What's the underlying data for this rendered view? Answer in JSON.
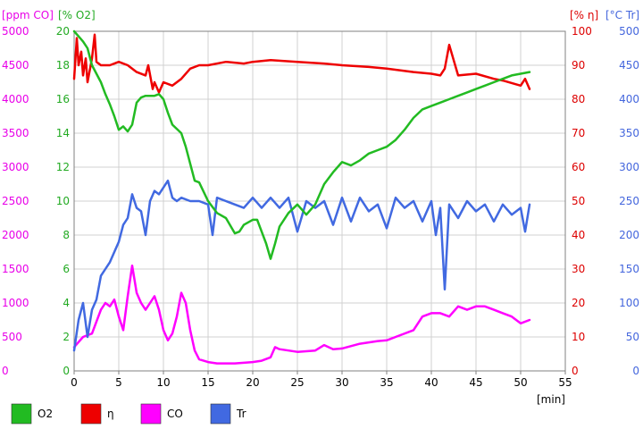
{
  "chart_data": {
    "type": "line",
    "x_unit_label": "[min]",
    "x_ticks": [
      0,
      5,
      10,
      15,
      20,
      25,
      30,
      35,
      40,
      45,
      50,
      55
    ],
    "xlim": [
      0,
      55
    ],
    "grid": true,
    "legend_position": "bottom",
    "axes": [
      {
        "id": "co",
        "side": "left",
        "label": "[ppm CO]",
        "range": [
          0,
          5000
        ],
        "ticks": [
          "0",
          "500",
          "1000",
          "1500",
          "2000",
          "2500",
          "3000",
          "3500",
          "4000",
          "4500",
          "5000"
        ],
        "color": "#e800e8"
      },
      {
        "id": "o2",
        "side": "left",
        "label": "[% O2]",
        "range": [
          0,
          20
        ],
        "ticks": [
          "0",
          "2",
          "4",
          "6",
          "8",
          "10",
          "12",
          "14",
          "16",
          "18",
          "20"
        ],
        "color": "#22aa22"
      },
      {
        "id": "eta",
        "side": "right",
        "label": "[% η]",
        "range": [
          0,
          100
        ],
        "ticks": [
          "0",
          "10",
          "20",
          "30",
          "40",
          "50",
          "60",
          "70",
          "80",
          "90",
          "100"
        ],
        "color": "#dd0000"
      },
      {
        "id": "tr",
        "side": "right",
        "label": "[°C Tr]",
        "range": [
          0,
          500
        ],
        "ticks": [
          "0",
          "50",
          "100",
          "150",
          "200",
          "250",
          "300",
          "350",
          "400",
          "450",
          "500"
        ],
        "color": "#4466dd"
      }
    ],
    "series": [
      {
        "name": "O2",
        "axis": "o2",
        "color": "#22bb22",
        "x": [
          0,
          0.5,
          1,
          1.5,
          2,
          3,
          3.5,
          4,
          4.5,
          5,
          5.5,
          6,
          6.5,
          7,
          7.5,
          8,
          9,
          9.5,
          10,
          10.5,
          11,
          12,
          12.5,
          13,
          13.5,
          14,
          15,
          16,
          17,
          18,
          18.5,
          19,
          20,
          20.5,
          21,
          21.5,
          22,
          22.5,
          23,
          24,
          25,
          26,
          27,
          28,
          29,
          30,
          31,
          32,
          33,
          34,
          35,
          36,
          37,
          38,
          39,
          40,
          41,
          42,
          43,
          44,
          45,
          46,
          47,
          48,
          49,
          50,
          51
        ],
        "y": [
          20,
          19.7,
          19.4,
          19,
          18,
          17,
          16.3,
          15.7,
          15,
          14.2,
          14.4,
          14.1,
          14.5,
          15.8,
          16.1,
          16.2,
          16.2,
          16.3,
          16,
          15.2,
          14.5,
          14,
          13.2,
          12.2,
          11.2,
          11.1,
          10,
          9.3,
          9,
          8.1,
          8.2,
          8.6,
          8.9,
          8.9,
          8.2,
          7.5,
          6.6,
          7.5,
          8.5,
          9.3,
          9.8,
          9.2,
          9.8,
          11,
          11.7,
          12.3,
          12.1,
          12.4,
          12.8,
          13,
          13.2,
          13.6,
          14.2,
          14.9,
          15.4,
          15.6,
          15.8,
          16,
          16.2,
          16.4,
          16.6,
          16.8,
          17,
          17.2,
          17.4,
          17.5,
          17.6
        ]
      },
      {
        "name": "η",
        "axis": "eta",
        "color": "#ee0000",
        "x": [
          0,
          0.3,
          0.5,
          0.8,
          1,
          1.3,
          1.5,
          2,
          2.3,
          2.5,
          3,
          4,
          5,
          6,
          7,
          8,
          8.3,
          8.8,
          9,
          9.5,
          10,
          11,
          12,
          13,
          14,
          15,
          17,
          19,
          20,
          22,
          25,
          28,
          30,
          33,
          35,
          38,
          40,
          41,
          41.5,
          42,
          43,
          45,
          47,
          48,
          50,
          50.5,
          51
        ],
        "y": [
          86,
          98,
          90,
          94,
          87,
          92,
          85,
          92,
          99,
          91,
          90,
          90,
          91,
          90,
          88,
          87,
          90,
          83,
          85,
          82,
          85,
          84,
          86,
          89,
          90,
          90,
          91,
          90.5,
          91,
          91.5,
          91,
          90.5,
          90,
          89.5,
          89,
          88,
          87.5,
          87,
          89,
          96,
          87,
          87.5,
          86,
          85.5,
          84,
          86,
          83
        ]
      },
      {
        "name": "CO",
        "axis": "co",
        "color": "#ff00ff",
        "x": [
          0,
          1,
          2,
          3,
          3.5,
          4,
          4.5,
          5,
          5.5,
          6,
          6.5,
          7,
          7.5,
          8,
          8.5,
          9,
          9.5,
          10,
          10.5,
          11,
          11.5,
          12,
          12.5,
          13,
          13.5,
          14,
          15,
          16,
          18,
          20,
          21,
          22,
          22.5,
          23,
          24,
          25,
          26,
          27,
          28,
          29,
          30,
          32,
          34,
          35,
          36,
          38,
          39,
          40,
          41,
          42,
          43,
          44,
          45,
          46,
          47,
          48,
          49,
          50,
          51
        ],
        "y": [
          350,
          500,
          550,
          900,
          1000,
          950,
          1050,
          800,
          600,
          1100,
          1550,
          1150,
          1000,
          900,
          1000,
          1100,
          900,
          600,
          450,
          550,
          800,
          1150,
          1000,
          600,
          300,
          170,
          130,
          110,
          110,
          130,
          150,
          200,
          350,
          320,
          300,
          280,
          290,
          300,
          380,
          320,
          330,
          400,
          440,
          450,
          500,
          600,
          800,
          850,
          850,
          800,
          950,
          900,
          950,
          950,
          900,
          850,
          800,
          700,
          750
        ]
      },
      {
        "name": "Tr",
        "axis": "tr",
        "color": "#4169e1",
        "x": [
          0,
          0.5,
          1,
          1.5,
          2,
          2.5,
          3,
          3.5,
          4,
          4.5,
          5,
          5.5,
          6,
          6.5,
          7,
          7.5,
          8,
          8.5,
          9,
          9.5,
          10,
          10.5,
          11,
          11.5,
          12,
          13,
          14,
          15,
          15.5,
          16,
          17,
          18,
          19,
          20,
          21,
          22,
          23,
          24,
          25,
          26,
          27,
          28,
          29,
          30,
          31,
          32,
          33,
          34,
          35,
          36,
          37,
          38,
          39,
          40,
          40.5,
          41,
          41.5,
          42,
          43,
          44,
          45,
          46,
          47,
          48,
          49,
          50,
          50.5,
          51
        ],
        "y": [
          30,
          75,
          100,
          50,
          90,
          105,
          140,
          150,
          160,
          175,
          190,
          215,
          225,
          260,
          240,
          235,
          200,
          250,
          265,
          260,
          270,
          280,
          255,
          250,
          255,
          250,
          250,
          245,
          200,
          255,
          250,
          245,
          240,
          255,
          240,
          255,
          240,
          255,
          205,
          250,
          240,
          250,
          215,
          255,
          220,
          255,
          235,
          245,
          210,
          255,
          240,
          250,
          220,
          250,
          200,
          240,
          120,
          245,
          225,
          250,
          235,
          245,
          220,
          245,
          230,
          240,
          205,
          245
        ]
      }
    ]
  },
  "legend": {
    "items": [
      {
        "label": "O2",
        "color": "#22bb22"
      },
      {
        "label": "η",
        "color": "#ee0000"
      },
      {
        "label": "CO",
        "color": "#ff00ff"
      },
      {
        "label": "Tr",
        "color": "#4169e1"
      }
    ]
  }
}
